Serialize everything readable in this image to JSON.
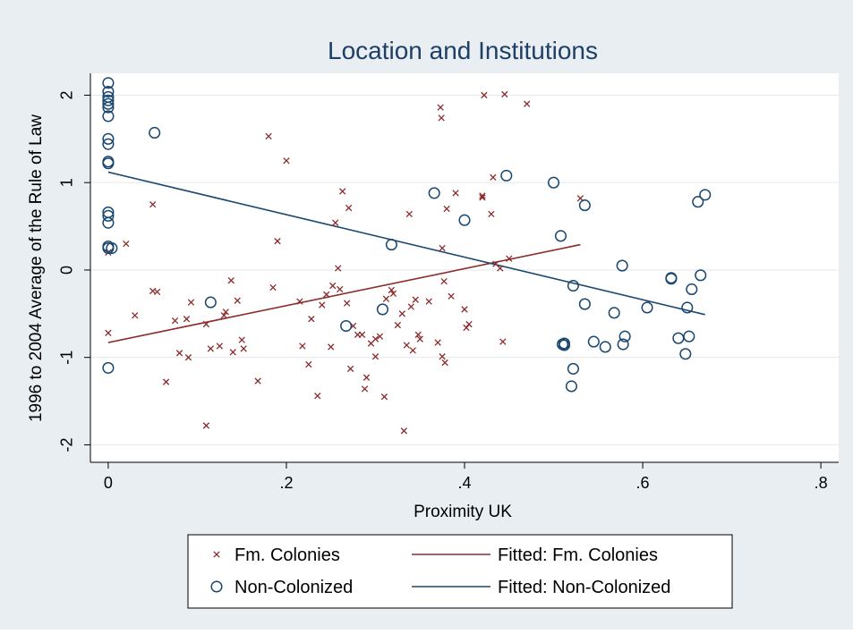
{
  "chart_data": {
    "type": "scatter",
    "title": "Location and Institutions",
    "xlabel": "Proximity UK",
    "ylabel": "1996 to 2004 Average of the Rule of Law",
    "xlim": [
      -0.02,
      0.82
    ],
    "ylim": [
      -2.2,
      2.25
    ],
    "xticks": [
      0,
      0.2,
      0.4,
      0.6,
      0.8
    ],
    "xtick_labels": [
      "0",
      ".2",
      ".4",
      ".6",
      ".8"
    ],
    "yticks": [
      -2,
      -1,
      0,
      1,
      2
    ],
    "ytick_labels": [
      "-2",
      "-1",
      "0",
      "1",
      "2"
    ],
    "grid": true,
    "legend_position": "bottom",
    "colors": {
      "background": "#e8eef2",
      "plot_area": "#ffffff",
      "fm_colonies": "#8c2b2b",
      "non_colonized": "#1a476f",
      "title": "#1e3f66",
      "grid": "#e4eaee"
    },
    "series": [
      {
        "name": "Fm. Colonies",
        "kind": "scatter",
        "marker": "x",
        "color": "#8c2b2b",
        "points": [
          [
            0.0,
            -0.72
          ],
          [
            0.0,
            0.2
          ],
          [
            0.02,
            0.3
          ],
          [
            0.03,
            -0.52
          ],
          [
            0.05,
            -0.24
          ],
          [
            0.05,
            0.75
          ],
          [
            0.055,
            -0.25
          ],
          [
            0.065,
            -1.28
          ],
          [
            0.075,
            -0.58
          ],
          [
            0.08,
            -0.95
          ],
          [
            0.088,
            -0.56
          ],
          [
            0.09,
            -1.0
          ],
          [
            0.093,
            -0.37
          ],
          [
            0.11,
            -1.78
          ],
          [
            0.11,
            -0.62
          ],
          [
            0.115,
            -0.9
          ],
          [
            0.125,
            -0.87
          ],
          [
            0.13,
            -0.52
          ],
          [
            0.132,
            -0.48
          ],
          [
            0.14,
            -0.94
          ],
          [
            0.138,
            -0.12
          ],
          [
            0.145,
            -0.35
          ],
          [
            0.15,
            -0.8
          ],
          [
            0.152,
            -0.9
          ],
          [
            0.168,
            -1.27
          ],
          [
            0.18,
            1.53
          ],
          [
            0.185,
            -0.2
          ],
          [
            0.19,
            0.33
          ],
          [
            0.2,
            1.25
          ],
          [
            0.215,
            -0.36
          ],
          [
            0.218,
            -0.87
          ],
          [
            0.225,
            -1.08
          ],
          [
            0.228,
            -0.56
          ],
          [
            0.235,
            -1.44
          ],
          [
            0.24,
            -0.4
          ],
          [
            0.245,
            -0.28
          ],
          [
            0.25,
            -0.88
          ],
          [
            0.252,
            -0.18
          ],
          [
            0.255,
            0.54
          ],
          [
            0.258,
            0.02
          ],
          [
            0.26,
            -0.22
          ],
          [
            0.263,
            0.9
          ],
          [
            0.268,
            -0.38
          ],
          [
            0.27,
            0.71
          ],
          [
            0.272,
            -1.13
          ],
          [
            0.275,
            -0.64
          ],
          [
            0.28,
            -0.74
          ],
          [
            0.285,
            -0.74
          ],
          [
            0.288,
            -1.36
          ],
          [
            0.29,
            -1.23
          ],
          [
            0.295,
            -0.84
          ],
          [
            0.3,
            -0.79
          ],
          [
            0.3,
            -0.99
          ],
          [
            0.305,
            -0.76
          ],
          [
            0.31,
            -1.45
          ],
          [
            0.312,
            -0.33
          ],
          [
            0.318,
            -0.23
          ],
          [
            0.32,
            -0.27
          ],
          [
            0.325,
            -0.63
          ],
          [
            0.33,
            -0.5
          ],
          [
            0.332,
            -1.84
          ],
          [
            0.335,
            -0.86
          ],
          [
            0.338,
            0.64
          ],
          [
            0.34,
            -0.42
          ],
          [
            0.342,
            -0.92
          ],
          [
            0.345,
            -0.34
          ],
          [
            0.348,
            -0.74
          ],
          [
            0.35,
            -0.79
          ],
          [
            0.36,
            -0.36
          ],
          [
            0.37,
            -0.83
          ],
          [
            0.373,
            1.86
          ],
          [
            0.374,
            1.74
          ],
          [
            0.375,
            -0.99
          ],
          [
            0.375,
            0.25
          ],
          [
            0.377,
            -0.13
          ],
          [
            0.378,
            -1.06
          ],
          [
            0.38,
            0.7
          ],
          [
            0.385,
            -0.3
          ],
          [
            0.39,
            0.88
          ],
          [
            0.4,
            -0.45
          ],
          [
            0.402,
            -0.66
          ],
          [
            0.405,
            -0.62
          ],
          [
            0.42,
            0.85
          ],
          [
            0.42,
            0.83
          ],
          [
            0.422,
            2.0
          ],
          [
            0.43,
            0.64
          ],
          [
            0.432,
            1.06
          ],
          [
            0.435,
            0.07
          ],
          [
            0.44,
            0.02
          ],
          [
            0.443,
            -0.82
          ],
          [
            0.445,
            2.01
          ],
          [
            0.45,
            0.13
          ],
          [
            0.47,
            1.9
          ],
          [
            0.53,
            0.82
          ]
        ]
      },
      {
        "name": "Non-Colonized",
        "kind": "scatter",
        "marker": "o",
        "color": "#1a476f",
        "points": [
          [
            0.0,
            2.14
          ],
          [
            0.0,
            2.04
          ],
          [
            0.0,
            1.98
          ],
          [
            0.0,
            1.94
          ],
          [
            0.0,
            1.9
          ],
          [
            0.0,
            1.86
          ],
          [
            0.0,
            1.76
          ],
          [
            0.0,
            1.5
          ],
          [
            0.0,
            1.44
          ],
          [
            0.0,
            1.24
          ],
          [
            0.0,
            1.22
          ],
          [
            0.0,
            0.66
          ],
          [
            0.0,
            0.62
          ],
          [
            0.0,
            0.54
          ],
          [
            0.0,
            0.27
          ],
          [
            0.0,
            0.25
          ],
          [
            0.004,
            0.25
          ],
          [
            0.0,
            -1.12
          ],
          [
            0.052,
            1.57
          ],
          [
            0.115,
            -0.37
          ],
          [
            0.267,
            -0.64
          ],
          [
            0.308,
            -0.45
          ],
          [
            0.318,
            0.29
          ],
          [
            0.366,
            0.88
          ],
          [
            0.4,
            0.57
          ],
          [
            0.447,
            1.08
          ],
          [
            0.5,
            1.0
          ],
          [
            0.508,
            0.39
          ],
          [
            0.51,
            -0.85
          ],
          [
            0.512,
            -0.84
          ],
          [
            0.512,
            -0.86
          ],
          [
            0.52,
            -1.33
          ],
          [
            0.522,
            -1.13
          ],
          [
            0.522,
            -0.18
          ],
          [
            0.535,
            0.74
          ],
          [
            0.535,
            -0.39
          ],
          [
            0.545,
            -0.82
          ],
          [
            0.558,
            -0.88
          ],
          [
            0.568,
            -0.49
          ],
          [
            0.577,
            0.05
          ],
          [
            0.578,
            -0.85
          ],
          [
            0.58,
            -0.76
          ],
          [
            0.605,
            -0.43
          ],
          [
            0.632,
            -0.09
          ],
          [
            0.632,
            -0.1
          ],
          [
            0.64,
            -0.78
          ],
          [
            0.648,
            -0.96
          ],
          [
            0.65,
            -0.43
          ],
          [
            0.652,
            -0.76
          ],
          [
            0.655,
            -0.22
          ],
          [
            0.662,
            0.78
          ],
          [
            0.665,
            -0.06
          ],
          [
            0.67,
            0.86
          ]
        ]
      },
      {
        "name": "Fitted: Fm. Colonies",
        "kind": "line",
        "color": "#8c2b2b",
        "points": [
          [
            0.0,
            -0.83
          ],
          [
            0.53,
            0.29
          ]
        ]
      },
      {
        "name": "Fitted: Non-Colonized",
        "kind": "line",
        "color": "#1a476f",
        "points": [
          [
            0.0,
            1.12
          ],
          [
            0.67,
            -0.51
          ]
        ]
      }
    ]
  }
}
